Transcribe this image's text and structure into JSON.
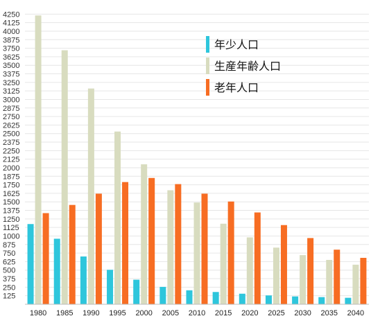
{
  "chart_data": {
    "type": "bar",
    "categories": [
      "1980",
      "1985",
      "1990",
      "1995",
      "2000",
      "2005",
      "2010",
      "2015",
      "2020",
      "2025",
      "2030",
      "2035",
      "2040"
    ],
    "series": [
      {
        "name": "年少人口",
        "color": "#2ec6dc",
        "values": [
          1175,
          960,
          700,
          505,
          360,
          255,
          205,
          180,
          155,
          130,
          115,
          105,
          95
        ]
      },
      {
        "name": "生産年齢人口",
        "color": "#d8dcbf",
        "values": [
          4230,
          3720,
          3160,
          2530,
          2050,
          1670,
          1490,
          1180,
          980,
          830,
          720,
          650,
          580
        ]
      },
      {
        "name": "老年人口",
        "color": "#f76d23",
        "values": [
          1335,
          1455,
          1620,
          1790,
          1850,
          1760,
          1620,
          1505,
          1345,
          1160,
          970,
          800,
          680
        ]
      }
    ],
    "yticks": [
      "125",
      "250",
      "375",
      "500",
      "625",
      "750",
      "875",
      "1000",
      "1125",
      "1250",
      "1375",
      "1500",
      "1625",
      "1750",
      "1875",
      "2000",
      "2125",
      "2250",
      "2375",
      "2500",
      "2625",
      "2750",
      "2875",
      "3000",
      "3125",
      "3250",
      "3375",
      "3500",
      "3625",
      "3750",
      "3875",
      "4000",
      "4125",
      "4250"
    ],
    "ylim": [
      0,
      4375
    ],
    "grid": true,
    "legend_position": "top-right",
    "title": "",
    "xlabel": "",
    "ylabel": ""
  }
}
